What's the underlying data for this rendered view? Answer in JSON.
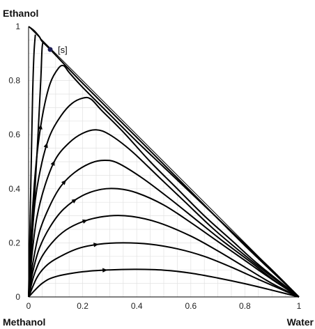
{
  "chart_data": {
    "type": "line",
    "title": "",
    "corner_labels": {
      "top": "Ethanol",
      "bottom_left": "Methanol",
      "bottom_right": "Water"
    },
    "xlim": [
      0,
      1
    ],
    "ylim": [
      0,
      1
    ],
    "x_ticks": [
      "0",
      "0.2",
      "0.4",
      "0.6",
      "0.8",
      "1"
    ],
    "y_ticks": [
      "0",
      "0.2",
      "0.4",
      "0.6",
      "0.8",
      "1"
    ],
    "x_tick_values": [
      0,
      0.2,
      0.4,
      0.6,
      0.8,
      1
    ],
    "y_tick_values": [
      0,
      0.2,
      0.4,
      0.6,
      0.8,
      1
    ],
    "grid": true,
    "colors": {
      "curve": "#000000",
      "grid": "#e2e2e2",
      "point": "#1c1c52"
    },
    "singular_point": {
      "label": "[s]",
      "x": 0.08,
      "y": 0.915
    },
    "series": [
      {
        "values": [
          [
            0,
            0
          ],
          [
            0.05,
            0.05
          ],
          [
            0.1,
            0.075
          ],
          [
            0.2,
            0.093
          ],
          [
            0.3,
            0.1
          ],
          [
            0.4,
            0.102
          ],
          [
            0.5,
            0.099
          ],
          [
            0.6,
            0.088
          ],
          [
            0.7,
            0.07
          ],
          [
            0.8,
            0.049
          ],
          [
            0.9,
            0.025
          ],
          [
            1,
            0
          ]
        ]
      },
      {
        "values": [
          [
            0,
            0
          ],
          [
            0.03,
            0.07
          ],
          [
            0.06,
            0.11
          ],
          [
            0.1,
            0.14
          ],
          [
            0.18,
            0.178
          ],
          [
            0.26,
            0.195
          ],
          [
            0.35,
            0.2
          ],
          [
            0.45,
            0.195
          ],
          [
            0.55,
            0.178
          ],
          [
            0.65,
            0.15
          ],
          [
            0.75,
            0.11
          ],
          [
            0.85,
            0.065
          ],
          [
            0.93,
            0.03
          ],
          [
            1,
            0
          ]
        ]
      },
      {
        "values": [
          [
            0,
            0
          ],
          [
            0.02,
            0.08
          ],
          [
            0.05,
            0.15
          ],
          [
            0.1,
            0.215
          ],
          [
            0.15,
            0.255
          ],
          [
            0.22,
            0.285
          ],
          [
            0.3,
            0.3
          ],
          [
            0.38,
            0.298
          ],
          [
            0.48,
            0.275
          ],
          [
            0.6,
            0.225
          ],
          [
            0.7,
            0.17
          ],
          [
            0.8,
            0.11
          ],
          [
            0.9,
            0.05
          ],
          [
            1,
            0
          ]
        ]
      },
      {
        "values": [
          [
            0,
            0
          ],
          [
            0.015,
            0.09
          ],
          [
            0.04,
            0.18
          ],
          [
            0.08,
            0.26
          ],
          [
            0.13,
            0.325
          ],
          [
            0.2,
            0.375
          ],
          [
            0.27,
            0.398
          ],
          [
            0.33,
            0.4
          ],
          [
            0.4,
            0.385
          ],
          [
            0.5,
            0.34
          ],
          [
            0.6,
            0.275
          ],
          [
            0.7,
            0.205
          ],
          [
            0.8,
            0.135
          ],
          [
            0.9,
            0.065
          ],
          [
            1,
            0
          ]
        ]
      },
      {
        "values": [
          [
            0,
            0
          ],
          [
            0.015,
            0.12
          ],
          [
            0.04,
            0.24
          ],
          [
            0.08,
            0.34
          ],
          [
            0.12,
            0.41
          ],
          [
            0.17,
            0.46
          ],
          [
            0.23,
            0.495
          ],
          [
            0.28,
            0.505
          ],
          [
            0.33,
            0.495
          ],
          [
            0.42,
            0.44
          ],
          [
            0.52,
            0.365
          ],
          [
            0.62,
            0.285
          ],
          [
            0.72,
            0.205
          ],
          [
            0.82,
            0.13
          ],
          [
            0.91,
            0.06
          ],
          [
            1,
            0
          ]
        ]
      },
      {
        "values": [
          [
            0,
            0
          ],
          [
            0.012,
            0.15
          ],
          [
            0.03,
            0.29
          ],
          [
            0.06,
            0.41
          ],
          [
            0.1,
            0.51
          ],
          [
            0.15,
            0.57
          ],
          [
            0.2,
            0.605
          ],
          [
            0.25,
            0.618
          ],
          [
            0.3,
            0.6
          ],
          [
            0.38,
            0.54
          ],
          [
            0.48,
            0.445
          ],
          [
            0.58,
            0.35
          ],
          [
            0.68,
            0.255
          ],
          [
            0.78,
            0.17
          ],
          [
            0.88,
            0.09
          ],
          [
            1,
            0
          ]
        ]
      },
      {
        "values": [
          [
            0,
            0
          ],
          [
            0.01,
            0.18
          ],
          [
            0.025,
            0.36
          ],
          [
            0.05,
            0.5
          ],
          [
            0.08,
            0.6
          ],
          [
            0.12,
            0.67
          ],
          [
            0.16,
            0.715
          ],
          [
            0.2,
            0.735
          ],
          [
            0.23,
            0.732
          ],
          [
            0.27,
            0.69
          ],
          [
            0.35,
            0.61
          ],
          [
            0.45,
            0.5
          ],
          [
            0.55,
            0.4
          ],
          [
            0.65,
            0.3
          ],
          [
            0.75,
            0.21
          ],
          [
            0.85,
            0.12
          ],
          [
            1,
            0
          ]
        ]
      },
      {
        "values": [
          [
            0,
            0
          ],
          [
            0.008,
            0.2
          ],
          [
            0.02,
            0.4
          ],
          [
            0.035,
            0.56
          ],
          [
            0.055,
            0.69
          ],
          [
            0.08,
            0.79
          ],
          [
            0.11,
            0.845
          ],
          [
            0.13,
            0.855
          ],
          [
            0.15,
            0.83
          ],
          [
            0.2,
            0.775
          ],
          [
            0.3,
            0.675
          ],
          [
            0.4,
            0.575
          ],
          [
            0.5,
            0.48
          ],
          [
            0.6,
            0.385
          ],
          [
            0.7,
            0.29
          ],
          [
            0.8,
            0.195
          ],
          [
            0.9,
            0.1
          ],
          [
            1,
            0
          ]
        ]
      },
      {
        "values": [
          [
            0,
            0
          ],
          [
            0.005,
            0.25
          ],
          [
            0.01,
            0.5
          ],
          [
            0.015,
            0.75
          ],
          [
            0.02,
            0.9
          ],
          [
            0.025,
            0.97
          ]
        ]
      },
      {
        "values": [
          [
            0,
            0
          ],
          [
            0.018,
            0.3
          ],
          [
            0.035,
            0.6
          ],
          [
            0.045,
            0.8
          ],
          [
            0.05,
            0.92
          ],
          [
            0.055,
            0.945
          ]
        ]
      },
      {
        "values": [
          [
            0,
            1
          ],
          [
            0.02,
            0.985
          ],
          [
            0.04,
            0.962
          ],
          [
            0.05,
            0.945
          ],
          [
            0.08,
            0.915
          ],
          [
            0.2,
            0.79
          ],
          [
            0.4,
            0.59
          ],
          [
            0.6,
            0.39
          ],
          [
            0.8,
            0.19
          ],
          [
            1,
            0
          ]
        ]
      }
    ]
  }
}
